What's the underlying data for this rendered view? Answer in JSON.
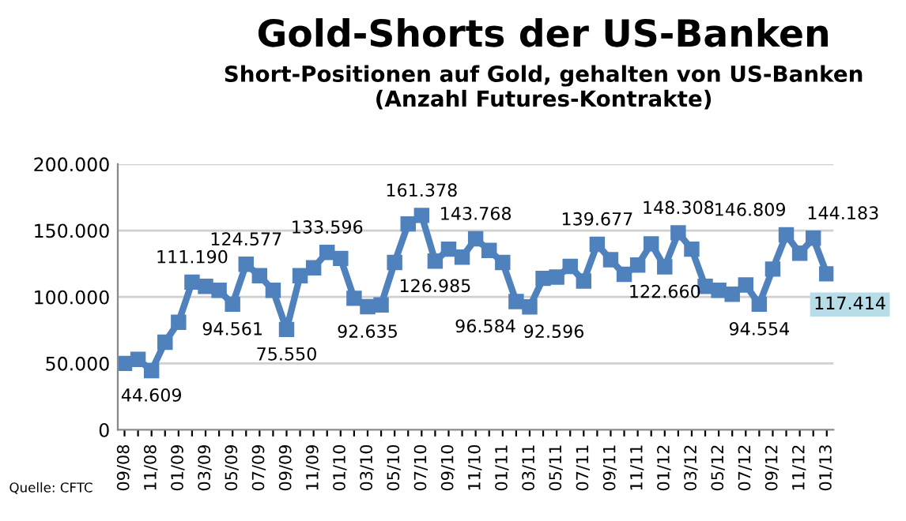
{
  "chart_data": {
    "type": "line",
    "title": "Gold-Shorts der US-Banken",
    "subtitle": "Short-Positionen auf Gold, gehalten von US-Banken (Anzahl Futures-Kontrakte)",
    "annotations": [
      "Quelle: CFTC"
    ],
    "categories": [
      "09/08",
      null,
      "11/08",
      null,
      "01/09",
      null,
      "03/09",
      null,
      "05/09",
      null,
      "07/09",
      null,
      "09/09",
      null,
      "11/09",
      null,
      "01/10",
      null,
      "03/10",
      null,
      "05/10",
      null,
      "07/10",
      null,
      "09/10",
      null,
      "11/10",
      null,
      "01/11",
      null,
      "03/11",
      null,
      "05/11",
      null,
      "07/11",
      null,
      "09/11",
      null,
      "11/11",
      null,
      "01/12",
      null,
      "03/12",
      null,
      "05/12",
      null,
      "07/12",
      null,
      "09/12",
      null,
      "11/12",
      null,
      "01/13"
    ],
    "series": [
      {
        "color": "#4f81bd",
        "values": [
          50000,
          53000,
          44609,
          66000,
          81000,
          111190,
          108000,
          105000,
          94561,
          124577,
          116000,
          105000,
          75550,
          116000,
          122000,
          133596,
          129000,
          99000,
          92635,
          94000,
          126000,
          155000,
          161378,
          126985,
          136000,
          130000,
          143768,
          135000,
          126000,
          96584,
          92596,
          114000,
          115000,
          123000,
          112000,
          139677,
          128000,
          117000,
          124000,
          140000,
          122660,
          148308,
          136000,
          108000,
          105000,
          102000,
          109000,
          94554,
          121000,
          146809,
          133000,
          144183,
          117414
        ],
        "value_labels": [
          null,
          null,
          "44.609",
          null,
          null,
          "111.190",
          null,
          null,
          "94.561",
          "124.577",
          null,
          null,
          "75.550",
          null,
          null,
          "133.596",
          null,
          null,
          "92.635",
          null,
          null,
          null,
          "161.378",
          "126.985",
          null,
          null,
          "143.768",
          null,
          null,
          "96.584",
          "92.596",
          null,
          null,
          null,
          null,
          "139.677",
          null,
          null,
          null,
          null,
          "122.660",
          "148.308",
          null,
          null,
          null,
          null,
          null,
          "94.554",
          null,
          "146.809",
          null,
          "144.183",
          "117.414"
        ]
      }
    ],
    "ylim": [
      0,
      200000
    ],
    "yticks": [
      {
        "value": 0,
        "label": "0"
      },
      {
        "value": 50000,
        "label": "50.000"
      },
      {
        "value": 100000,
        "label": "100.000"
      },
      {
        "value": 150000,
        "label": "150.000"
      },
      {
        "value": 200000,
        "label": "200.000"
      }
    ],
    "grid": "y",
    "legend": false,
    "marker": "square",
    "line_style": "solid"
  }
}
